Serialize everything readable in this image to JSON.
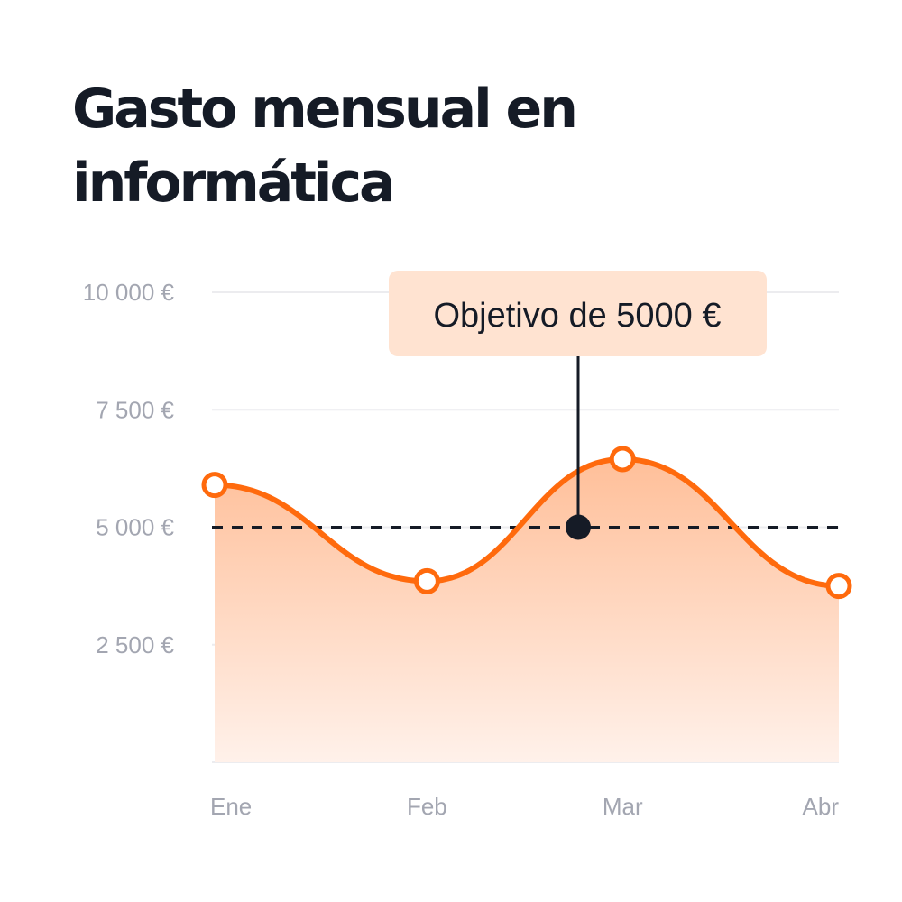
{
  "chart_data": {
    "type": "area",
    "title": "Gasto mensual en informática",
    "categories": [
      "Ene",
      "Feb",
      "Mar",
      "Abr"
    ],
    "series": [
      {
        "values": [
          5900,
          3850,
          6450,
          3750
        ]
      }
    ],
    "ylim": [
      0,
      10000
    ],
    "yticks": [
      {
        "value": 10000,
        "label": "10 000 €"
      },
      {
        "value": 7500,
        "label": "7 500 €"
      },
      {
        "value": 5000,
        "label": "5 000 €"
      },
      {
        "value": 2500,
        "label": "2 500 €"
      }
    ],
    "reference_line": {
      "value": 5000,
      "label": "Objetivo de 5000 €"
    },
    "grid": true,
    "colors": {
      "line": "#ff6a0d",
      "area_top": "#ffbf99",
      "area_bottom": "#fff1ea",
      "reference": "#151b26",
      "callout_bg": "#ffe3d1",
      "grid": "#ececef",
      "ticks": "#a3a6b1",
      "title": "#151b26"
    }
  }
}
